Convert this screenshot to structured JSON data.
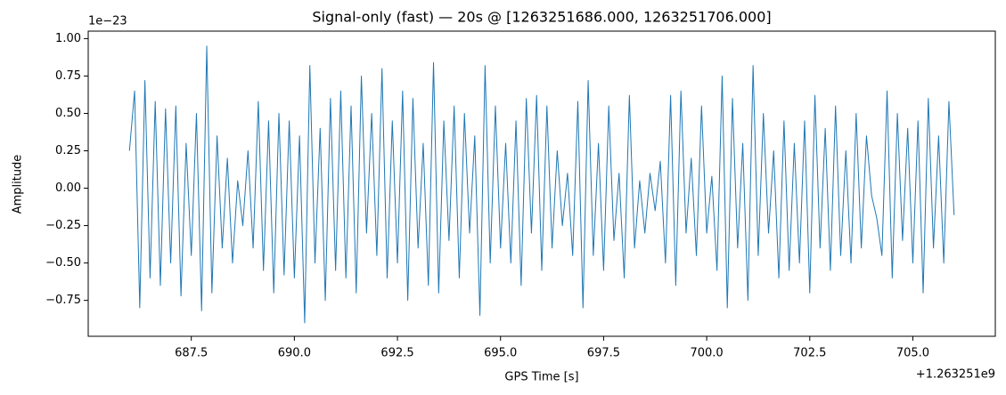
{
  "chart_data": {
    "type": "line",
    "title": "Signal-only (fast) — 20s @ [1263251686.000, 1263251706.000]",
    "xlabel": "GPS Time [s]",
    "ylabel": "Amplitude",
    "x_offset_label": "+1.263251e9",
    "y_offset_label": "1e−23",
    "color": "#1f77b4",
    "xlim": [
      685,
      707
    ],
    "ylim": [
      -0.99,
      1.05
    ],
    "xticks": [
      687.5,
      {
        "value": 690,
        "label": "690.0"
      },
      692.5,
      {
        "value": 695,
        "label": "695.0"
      },
      697.5,
      {
        "value": 700,
        "label": "700.0"
      },
      702.5,
      {
        "value": 705,
        "label": "705.0"
      }
    ],
    "yticks": [
      {
        "value": -0.75,
        "label": "−0.75"
      },
      {
        "value": -0.5,
        "label": "−0.50"
      },
      {
        "value": -0.25,
        "label": "−0.25"
      },
      {
        "value": 0,
        "label": "0.00"
      },
      0.25,
      {
        "value": 0.5,
        "label": "0.50"
      },
      0.75,
      {
        "value": 1,
        "label": "1.00"
      }
    ],
    "x": [
      686,
      686.125,
      686.25,
      686.375,
      686.5,
      686.625,
      686.75,
      686.875,
      687,
      687.125,
      687.25,
      687.375,
      687.5,
      687.625,
      687.75,
      687.875,
      688,
      688.125,
      688.25,
      688.375,
      688.5,
      688.625,
      688.75,
      688.875,
      689,
      689.125,
      689.25,
      689.375,
      689.5,
      689.625,
      689.75,
      689.875,
      690,
      690.125,
      690.25,
      690.375,
      690.5,
      690.625,
      690.75,
      690.875,
      691,
      691.125,
      691.25,
      691.375,
      691.5,
      691.625,
      691.75,
      691.875,
      692,
      692.125,
      692.25,
      692.375,
      692.5,
      692.625,
      692.75,
      692.875,
      693,
      693.125,
      693.25,
      693.375,
      693.5,
      693.625,
      693.75,
      693.875,
      694,
      694.125,
      694.25,
      694.375,
      694.5,
      694.625,
      694.75,
      694.875,
      695,
      695.125,
      695.25,
      695.375,
      695.5,
      695.625,
      695.75,
      695.875,
      696,
      696.125,
      696.25,
      696.375,
      696.5,
      696.625,
      696.75,
      696.875,
      697,
      697.125,
      697.25,
      697.375,
      697.5,
      697.625,
      697.75,
      697.875,
      698,
      698.125,
      698.25,
      698.375,
      698.5,
      698.625,
      698.75,
      698.875,
      699,
      699.125,
      699.25,
      699.375,
      699.5,
      699.625,
      699.75,
      699.875,
      700,
      700.125,
      700.25,
      700.375,
      700.5,
      700.625,
      700.75,
      700.875,
      701,
      701.125,
      701.25,
      701.375,
      701.5,
      701.625,
      701.75,
      701.875,
      702,
      702.125,
      702.25,
      702.375,
      702.5,
      702.625,
      702.75,
      702.875,
      703,
      703.125,
      703.25,
      703.375,
      703.5,
      703.625,
      703.75,
      703.875,
      704,
      704.125,
      704.25,
      704.375,
      704.5,
      704.625,
      704.75,
      704.875,
      705,
      705.125,
      705.25,
      705.375,
      705.5,
      705.625,
      705.75,
      705.875,
      706
    ],
    "values": [
      0.25,
      0.65,
      -0.8,
      0.72,
      -0.6,
      0.58,
      -0.65,
      0.53,
      -0.5,
      0.55,
      -0.72,
      0.3,
      -0.45,
      0.5,
      -0.82,
      0.95,
      -0.7,
      0.35,
      -0.4,
      0.2,
      -0.5,
      0.05,
      -0.25,
      0.25,
      -0.4,
      0.58,
      -0.55,
      0.45,
      -0.7,
      0.5,
      -0.58,
      0.45,
      -0.6,
      0.35,
      -0.9,
      0.82,
      -0.5,
      0.4,
      -0.75,
      0.6,
      -0.55,
      0.65,
      -0.6,
      0.55,
      -0.7,
      0.75,
      -0.3,
      0.5,
      -0.45,
      0.8,
      -0.6,
      0.45,
      -0.5,
      0.65,
      -0.75,
      0.6,
      -0.4,
      0.3,
      -0.65,
      0.84,
      -0.7,
      0.45,
      -0.35,
      0.55,
      -0.6,
      0.5,
      -0.3,
      0.35,
      -0.85,
      0.82,
      -0.5,
      0.55,
      -0.4,
      0.3,
      -0.5,
      0.45,
      -0.65,
      0.6,
      -0.3,
      0.62,
      -0.55,
      0.55,
      -0.4,
      0.25,
      -0.25,
      0.1,
      -0.45,
      0.58,
      -0.8,
      0.72,
      -0.45,
      0.3,
      -0.55,
      0.55,
      -0.35,
      0.1,
      -0.6,
      0.62,
      -0.4,
      0.05,
      -0.3,
      0.1,
      -0.15,
      0.18,
      -0.5,
      0.62,
      -0.65,
      0.65,
      -0.3,
      0.2,
      -0.45,
      0.55,
      -0.3,
      0.08,
      -0.55,
      0.75,
      -0.8,
      0.6,
      -0.4,
      0.3,
      -0.75,
      0.82,
      -0.45,
      0.5,
      -0.3,
      0.25,
      -0.6,
      0.45,
      -0.55,
      0.3,
      -0.5,
      0.45,
      -0.7,
      0.62,
      -0.4,
      0.4,
      -0.55,
      0.55,
      -0.45,
      0.25,
      -0.5,
      0.5,
      -0.4,
      0.35,
      -0.05,
      -0.2,
      -0.45,
      0.65,
      -0.6,
      0.5,
      -0.35,
      0.4,
      -0.5,
      0.45,
      -0.7,
      0.6,
      -0.4,
      0.35,
      -0.5,
      0.58,
      -0.18
    ]
  }
}
